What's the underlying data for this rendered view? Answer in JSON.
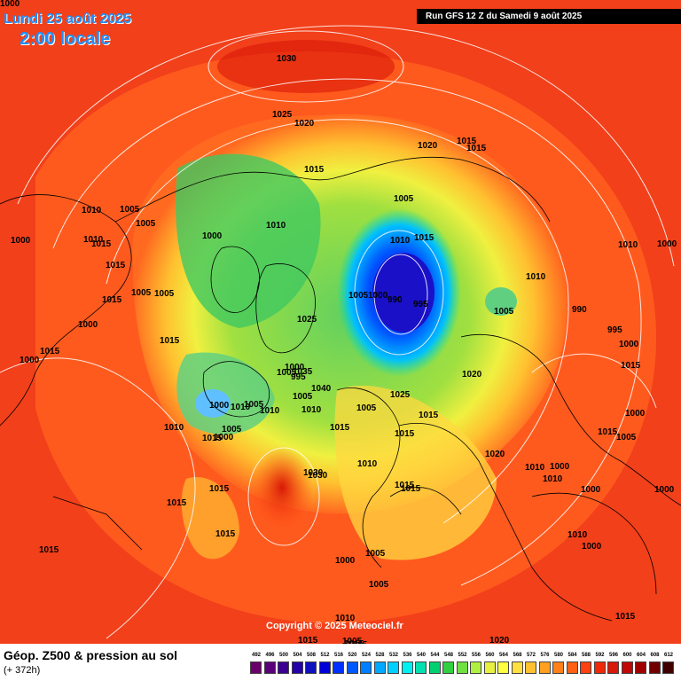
{
  "header": {
    "date": "Lundi 25 août 2025",
    "time": "2:00 locale",
    "run": "Run GFS 12 Z du Samedi 9 août 2025"
  },
  "footer": {
    "product": "Géop. Z500 & pression au sol",
    "forecast_hour": "(+ 372h)",
    "copyright": "Copyright © 2025 Meteociel.fr"
  },
  "legend": {
    "values": [
      "492",
      "496",
      "500",
      "504",
      "508",
      "512",
      "516",
      "520",
      "524",
      "528",
      "532",
      "536",
      "540",
      "544",
      "548",
      "552",
      "556",
      "560",
      "564",
      "568",
      "572",
      "576",
      "580",
      "584",
      "588",
      "592",
      "596",
      "600",
      "604",
      "608",
      "612"
    ],
    "colors": [
      "#6a006a",
      "#5a007a",
      "#3a0090",
      "#2600a8",
      "#1010c0",
      "#0000d8",
      "#0030ff",
      "#0058ff",
      "#0080ff",
      "#00a8ff",
      "#00d0ff",
      "#00f0f0",
      "#00e0b0",
      "#00d070",
      "#30d040",
      "#70e040",
      "#b0f040",
      "#e8f040",
      "#ffff40",
      "#ffe040",
      "#ffc030",
      "#ffa020",
      "#ff8018",
      "#ff6014",
      "#ff4010",
      "#f02808",
      "#d81808",
      "#c00808",
      "#a00000",
      "#700000",
      "#400000"
    ]
  },
  "map": {
    "isobars": [
      "1030",
      "1025",
      "1020",
      "1010",
      "1015",
      "1005",
      "1000",
      "1010",
      "1005",
      "1000",
      "1015",
      "1010",
      "1015",
      "1005",
      "1015",
      "1000",
      "1005",
      "1015",
      "1000",
      "1015",
      "1010",
      "1015",
      "1005",
      "1000",
      "1010",
      "1005",
      "1010",
      "1000",
      "1005",
      "1000",
      "995",
      "1005",
      "1010",
      "1025",
      "1035",
      "1040",
      "1030",
      "1005",
      "1020",
      "1015",
      "1015",
      "1015",
      "990",
      "995",
      "1000",
      "1005",
      "1010",
      "1005",
      "1010",
      "990",
      "995",
      "1000",
      "1015",
      "1025",
      "1020",
      "1015",
      "1005",
      "1015",
      "1010",
      "1015",
      "1015",
      "1020",
      "1015",
      "1030",
      "1015",
      "1015",
      "1015",
      "1015",
      "1010",
      "1010",
      "1010",
      "1000",
      "1000",
      "1015",
      "1005",
      "1000",
      "1000",
      "1000",
      "1010",
      "1000",
      "1000",
      "1005",
      "1005",
      "1010",
      "1015",
      "1020",
      "1015",
      "1015",
      "1015",
      "1005",
      "1000"
    ]
  }
}
